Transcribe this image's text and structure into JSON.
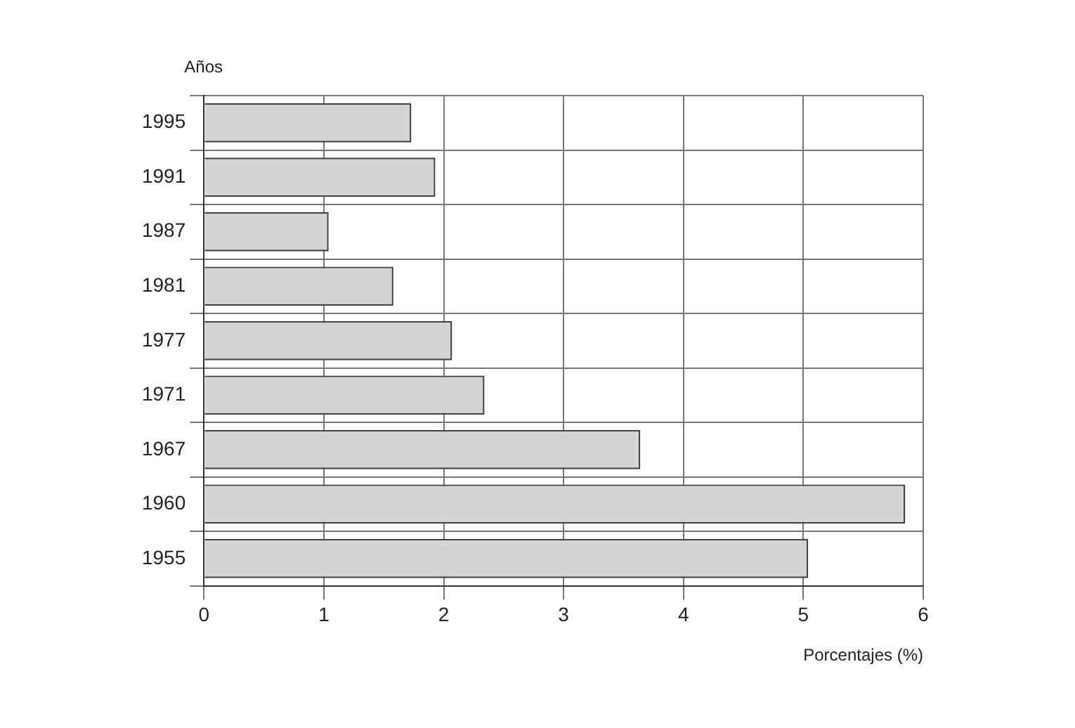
{
  "chart_data": {
    "type": "bar",
    "orientation": "horizontal",
    "ylabel": "Años",
    "xlabel": "Porcentajes (%)",
    "categories": [
      "1995",
      "1991",
      "1987",
      "1981",
      "1977",
      "1971",
      "1967",
      "1960",
      "1955"
    ],
    "values": [
      1.73,
      1.93,
      1.04,
      1.58,
      2.07,
      2.34,
      3.64,
      5.85,
      5.04
    ],
    "color": "#d4d4d4",
    "xlim": [
      0,
      6
    ],
    "xticks": [
      0,
      1,
      2,
      3,
      4,
      5,
      6
    ],
    "grid": true,
    "legend": false
  }
}
